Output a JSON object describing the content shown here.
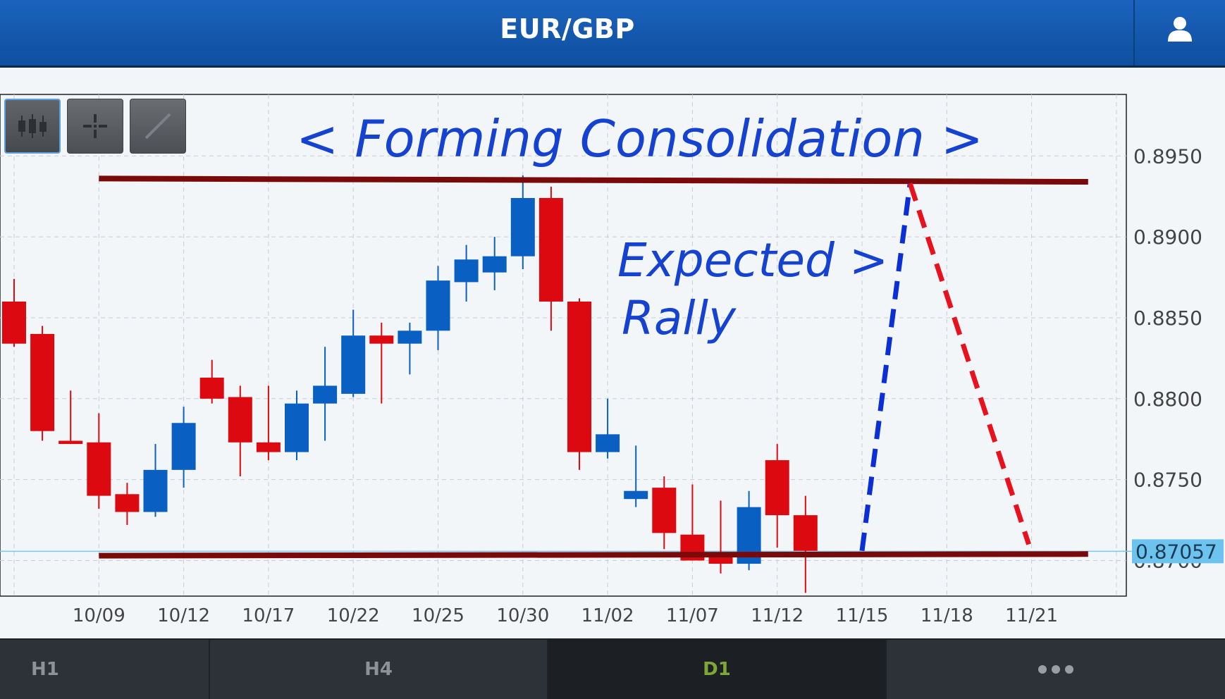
{
  "header": {
    "title": "EUR/GBP",
    "user_icon": "user-icon"
  },
  "toolbar": {
    "tools": [
      {
        "name": "candlestick-tool-icon",
        "active": true
      },
      {
        "name": "crosshair-tool-icon",
        "active": false
      },
      {
        "name": "trendline-tool-icon",
        "active": false
      }
    ]
  },
  "colors": {
    "bullish": "#0a5fc2",
    "bearish": "#dc0a10",
    "level_line": "#7a0a0a",
    "annotation": "#1542d0",
    "projection_up": "#0a2fd6",
    "projection_down": "#e8121e",
    "price_badge": "#6cc4ee"
  },
  "chart_data": {
    "type": "candlestick",
    "title": "",
    "annotations": [
      "< Forming  Consolidation >",
      "Expected >",
      "Rally"
    ],
    "ylim": [
      0.8678,
      0.8988
    ],
    "y_ticks": [
      "0.8950",
      "0.8900",
      "0.8850",
      "0.8800",
      "0.8750",
      "0.8700"
    ],
    "y_tick_values": [
      0.895,
      0.89,
      0.885,
      0.88,
      0.875,
      0.87
    ],
    "current_price": "0.87057",
    "current_price_value": 0.87057,
    "x_tick_labels": [
      "10/09",
      "10/12",
      "10/17",
      "10/22",
      "10/25",
      "10/30",
      "11/02",
      "11/07",
      "11/12",
      "11/15",
      "11/18",
      "11/21"
    ],
    "x_tick_index": [
      3,
      6,
      9,
      12,
      15,
      18,
      21,
      24,
      27,
      30,
      33,
      36
    ],
    "candles": [
      {
        "i": 0,
        "o": 0.886,
        "h": 0.8874,
        "l": 0.8832,
        "c": 0.8834
      },
      {
        "i": 1,
        "o": 0.884,
        "h": 0.8845,
        "l": 0.8774,
        "c": 0.878
      },
      {
        "i": 2,
        "o": 0.8774,
        "h": 0.8805,
        "l": 0.8772,
        "c": 0.8772
      },
      {
        "i": 3,
        "o": 0.8773,
        "h": 0.8791,
        "l": 0.8732,
        "c": 0.874
      },
      {
        "i": 4,
        "o": 0.8741,
        "h": 0.8748,
        "l": 0.8722,
        "c": 0.873
      },
      {
        "i": 5,
        "o": 0.873,
        "h": 0.8772,
        "l": 0.8727,
        "c": 0.8756
      },
      {
        "i": 6,
        "o": 0.8756,
        "h": 0.8795,
        "l": 0.8745,
        "c": 0.8785
      },
      {
        "i": 7,
        "o": 0.8813,
        "h": 0.8824,
        "l": 0.8797,
        "c": 0.88
      },
      {
        "i": 8,
        "o": 0.8801,
        "h": 0.8808,
        "l": 0.8752,
        "c": 0.8773
      },
      {
        "i": 9,
        "o": 0.8773,
        "h": 0.8808,
        "l": 0.8762,
        "c": 0.8767
      },
      {
        "i": 10,
        "o": 0.8767,
        "h": 0.8805,
        "l": 0.8762,
        "c": 0.8797
      },
      {
        "i": 11,
        "o": 0.8797,
        "h": 0.8832,
        "l": 0.8774,
        "c": 0.8808
      },
      {
        "i": 12,
        "o": 0.8803,
        "h": 0.8855,
        "l": 0.8801,
        "c": 0.8839
      },
      {
        "i": 13,
        "o": 0.8839,
        "h": 0.8847,
        "l": 0.8797,
        "c": 0.8834
      },
      {
        "i": 14,
        "o": 0.8834,
        "h": 0.8847,
        "l": 0.8815,
        "c": 0.8842
      },
      {
        "i": 15,
        "o": 0.8842,
        "h": 0.8882,
        "l": 0.883,
        "c": 0.8873
      },
      {
        "i": 16,
        "o": 0.8872,
        "h": 0.8895,
        "l": 0.886,
        "c": 0.8886
      },
      {
        "i": 17,
        "o": 0.8878,
        "h": 0.89,
        "l": 0.8867,
        "c": 0.8888
      },
      {
        "i": 18,
        "o": 0.8888,
        "h": 0.8938,
        "l": 0.888,
        "c": 0.8924
      },
      {
        "i": 19,
        "o": 0.8924,
        "h": 0.8931,
        "l": 0.8842,
        "c": 0.886
      },
      {
        "i": 20,
        "o": 0.886,
        "h": 0.8862,
        "l": 0.8756,
        "c": 0.8767
      },
      {
        "i": 21,
        "o": 0.8767,
        "h": 0.88,
        "l": 0.8763,
        "c": 0.8778
      },
      {
        "i": 22,
        "o": 0.8738,
        "h": 0.8771,
        "l": 0.8733,
        "c": 0.8743
      },
      {
        "i": 23,
        "o": 0.8745,
        "h": 0.8752,
        "l": 0.8707,
        "c": 0.8717
      },
      {
        "i": 24,
        "o": 0.8716,
        "h": 0.8747,
        "l": 0.87,
        "c": 0.87
      },
      {
        "i": 25,
        "o": 0.8702,
        "h": 0.8737,
        "l": 0.8692,
        "c": 0.8698
      },
      {
        "i": 26,
        "o": 0.8698,
        "h": 0.8743,
        "l": 0.8694,
        "c": 0.8733
      },
      {
        "i": 27,
        "o": 0.8762,
        "h": 0.8772,
        "l": 0.8708,
        "c": 0.8728
      },
      {
        "i": 28,
        "o": 0.8728,
        "h": 0.874,
        "l": 0.868,
        "c": 0.8706
      }
    ],
    "resistance": {
      "start_index": 0,
      "end_index": 38,
      "start_value": 0.8936,
      "end_value": 0.8934
    },
    "support": {
      "start_index": 0,
      "end_index": 38,
      "start_value": 0.8703,
      "end_value": 0.8704
    },
    "projection": [
      {
        "from_index": 30,
        "from_value": 0.8706,
        "to_index": 31.7,
        "to_value": 0.8933,
        "direction": "up"
      },
      {
        "from_index": 31.7,
        "from_value": 0.8933,
        "to_index": 35.9,
        "to_value": 0.871,
        "direction": "down"
      }
    ],
    "grid": true
  },
  "timeframes": {
    "tabs": [
      {
        "label": "H1",
        "active": false
      },
      {
        "label": "H4",
        "active": false
      },
      {
        "label": "D1",
        "active": true
      }
    ],
    "more_icon": "more-icon"
  }
}
